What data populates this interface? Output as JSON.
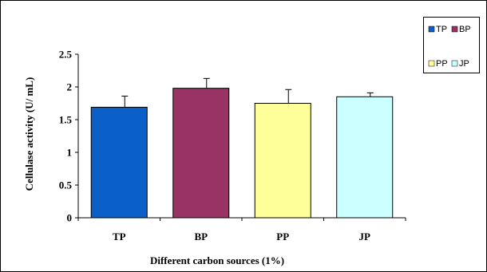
{
  "chart_data": {
    "type": "bar",
    "categories": [
      "TP",
      "BP",
      "PP",
      "JP"
    ],
    "values": [
      1.69,
      1.98,
      1.75,
      1.85
    ],
    "errors": [
      0.17,
      0.15,
      0.21,
      0.06
    ],
    "colors": [
      "#0A5FC8",
      "#993366",
      "#FFFF99",
      "#CCFFFF"
    ],
    "xlabel": "Different carbon sources (1%)",
    "ylabel": "Cellulase activity (U/ mL)",
    "ylim": [
      0,
      2.5
    ],
    "yticks": [
      "0",
      "0.5",
      "1",
      "1.5",
      "2",
      "2.5"
    ],
    "legend": {
      "position": "top-right",
      "entries": [
        "TP",
        "BP",
        "PP",
        "JP"
      ]
    },
    "grid": false
  }
}
